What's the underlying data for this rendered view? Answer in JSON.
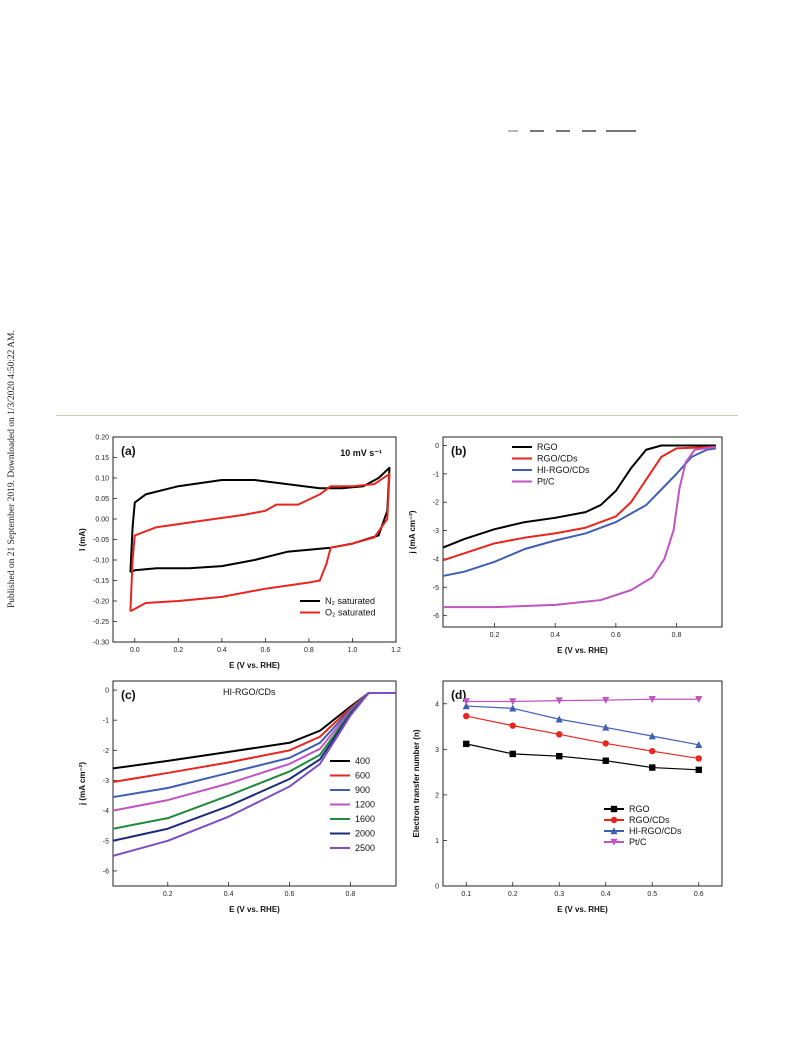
{
  "side_note": "Published on 21 September 2019. Downloaded on 1/3/2020 4:50:22 AM.",
  "chart_data": [
    {
      "type": "line",
      "panel_label": "(a)",
      "annotation": "10 mV s⁻¹",
      "xlabel": "E (V vs. RHE)",
      "ylabel": "I (mA)",
      "xlim": [
        -0.1,
        1.2
      ],
      "ylim": [
        -0.3,
        0.2
      ],
      "xticks": [
        "0.0",
        "0.2",
        "0.4",
        "0.6",
        "0.8",
        "1.0",
        "1.2"
      ],
      "yticks": [
        "-0.30",
        "-0.25",
        "-0.20",
        "-0.15",
        "-0.10",
        "-0.05",
        "0.00",
        "0.05",
        "0.10",
        "0.15",
        "0.20"
      ],
      "legend": "bottom-right",
      "series": [
        {
          "name": "N₂ saturated",
          "color": "#000000",
          "points": [
            [
              -0.02,
              -0.13
            ],
            [
              -0.01,
              -0.02
            ],
            [
              0.0,
              0.04
            ],
            [
              0.05,
              0.06
            ],
            [
              0.2,
              0.08
            ],
            [
              0.4,
              0.095
            ],
            [
              0.55,
              0.095
            ],
            [
              0.7,
              0.085
            ],
            [
              0.85,
              0.075
            ],
            [
              0.95,
              0.075
            ],
            [
              1.05,
              0.08
            ],
            [
              1.12,
              0.1
            ],
            [
              1.17,
              0.125
            ],
            [
              1.16,
              0.02
            ],
            [
              1.12,
              -0.04
            ],
            [
              1.0,
              -0.06
            ],
            [
              0.9,
              -0.07
            ],
            [
              0.7,
              -0.08
            ],
            [
              0.55,
              -0.1
            ],
            [
              0.4,
              -0.115
            ],
            [
              0.25,
              -0.12
            ],
            [
              0.1,
              -0.12
            ],
            [
              0.0,
              -0.125
            ],
            [
              -0.02,
              -0.13
            ]
          ]
        },
        {
          "name": "O₂ saturated",
          "color": "#e8261f",
          "points": [
            [
              -0.02,
              -0.225
            ],
            [
              -0.01,
              -0.1
            ],
            [
              0.0,
              -0.04
            ],
            [
              0.1,
              -0.02
            ],
            [
              0.3,
              -0.005
            ],
            [
              0.5,
              0.01
            ],
            [
              0.6,
              0.02
            ],
            [
              0.65,
              0.035
            ],
            [
              0.75,
              0.035
            ],
            [
              0.85,
              0.06
            ],
            [
              0.9,
              0.08
            ],
            [
              1.0,
              0.08
            ],
            [
              1.1,
              0.085
            ],
            [
              1.17,
              0.11
            ],
            [
              1.16,
              0.0
            ],
            [
              1.1,
              -0.045
            ],
            [
              1.0,
              -0.06
            ],
            [
              0.9,
              -0.07
            ],
            [
              0.88,
              -0.11
            ],
            [
              0.85,
              -0.15
            ],
            [
              0.8,
              -0.155
            ],
            [
              0.6,
              -0.17
            ],
            [
              0.4,
              -0.19
            ],
            [
              0.2,
              -0.2
            ],
            [
              0.05,
              -0.205
            ],
            [
              -0.02,
              -0.225
            ]
          ]
        }
      ]
    },
    {
      "type": "line",
      "panel_label": "(b)",
      "xlabel": "E (V vs. RHE)",
      "ylabel": "j (mA cm⁻²)",
      "xlim": [
        0.03,
        0.95
      ],
      "ylim": [
        -6.4,
        0.3
      ],
      "xticks": [
        "0.2",
        "0.4",
        "0.6",
        "0.8"
      ],
      "yticks": [
        "0",
        "-1",
        "-2",
        "-3",
        "-4",
        "-5",
        "-6"
      ],
      "legend": "top-left",
      "series": [
        {
          "name": "RGO",
          "color": "#000000",
          "points": [
            [
              0.03,
              -3.6
            ],
            [
              0.1,
              -3.3
            ],
            [
              0.2,
              -2.95
            ],
            [
              0.3,
              -2.7
            ],
            [
              0.4,
              -2.55
            ],
            [
              0.5,
              -2.35
            ],
            [
              0.55,
              -2.1
            ],
            [
              0.6,
              -1.6
            ],
            [
              0.65,
              -0.8
            ],
            [
              0.7,
              -0.15
            ],
            [
              0.75,
              0.0
            ],
            [
              0.85,
              0.0
            ],
            [
              0.93,
              0.0
            ]
          ]
        },
        {
          "name": "RGO/CDs",
          "color": "#e8261f",
          "points": [
            [
              0.03,
              -4.05
            ],
            [
              0.1,
              -3.8
            ],
            [
              0.2,
              -3.45
            ],
            [
              0.3,
              -3.25
            ],
            [
              0.4,
              -3.1
            ],
            [
              0.5,
              -2.9
            ],
            [
              0.6,
              -2.5
            ],
            [
              0.65,
              -2.0
            ],
            [
              0.7,
              -1.2
            ],
            [
              0.75,
              -0.4
            ],
            [
              0.8,
              -0.1
            ],
            [
              0.93,
              -0.05
            ]
          ]
        },
        {
          "name": "HI-RGO/CDs",
          "color": "#3f5fb5",
          "points": [
            [
              0.03,
              -4.6
            ],
            [
              0.1,
              -4.45
            ],
            [
              0.2,
              -4.1
            ],
            [
              0.3,
              -3.65
            ],
            [
              0.4,
              -3.35
            ],
            [
              0.5,
              -3.1
            ],
            [
              0.6,
              -2.7
            ],
            [
              0.7,
              -2.1
            ],
            [
              0.8,
              -1.0
            ],
            [
              0.85,
              -0.4
            ],
            [
              0.9,
              -0.15
            ],
            [
              0.93,
              -0.1
            ]
          ]
        },
        {
          "name": "Pt/C",
          "color": "#c054c0",
          "points": [
            [
              0.03,
              -5.7
            ],
            [
              0.2,
              -5.7
            ],
            [
              0.4,
              -5.62
            ],
            [
              0.55,
              -5.45
            ],
            [
              0.65,
              -5.1
            ],
            [
              0.72,
              -4.65
            ],
            [
              0.76,
              -4.0
            ],
            [
              0.79,
              -3.0
            ],
            [
              0.81,
              -1.5
            ],
            [
              0.83,
              -0.6
            ],
            [
              0.86,
              -0.15
            ],
            [
              0.93,
              -0.05
            ]
          ]
        }
      ]
    },
    {
      "type": "line",
      "panel_label": "(c)",
      "annotation": "HI-RGO/CDs",
      "xlabel": "E (V vs. RHE)",
      "ylabel": "j (mA cm⁻²)",
      "xlim": [
        0.02,
        0.95
      ],
      "ylim": [
        -6.5,
        0.3
      ],
      "xticks": [
        "0.2",
        "0.4",
        "0.6",
        "0.8"
      ],
      "yticks": [
        "0",
        "-1",
        "-2",
        "-3",
        "-4",
        "-5",
        "-6"
      ],
      "legend": "right",
      "series": [
        {
          "name": "400",
          "color": "#000000",
          "points": [
            [
              0.02,
              -2.6
            ],
            [
              0.2,
              -2.35
            ],
            [
              0.4,
              -2.05
            ],
            [
              0.6,
              -1.75
            ],
            [
              0.7,
              -1.35
            ],
            [
              0.8,
              -0.55
            ],
            [
              0.86,
              -0.1
            ],
            [
              0.95,
              -0.1
            ]
          ]
        },
        {
          "name": "600",
          "color": "#e8261f",
          "points": [
            [
              0.02,
              -3.05
            ],
            [
              0.2,
              -2.75
            ],
            [
              0.4,
              -2.4
            ],
            [
              0.6,
              -2.0
            ],
            [
              0.7,
              -1.55
            ],
            [
              0.8,
              -0.6
            ],
            [
              0.86,
              -0.1
            ],
            [
              0.95,
              -0.1
            ]
          ]
        },
        {
          "name": "900",
          "color": "#3f5fb5",
          "points": [
            [
              0.02,
              -3.55
            ],
            [
              0.2,
              -3.25
            ],
            [
              0.4,
              -2.75
            ],
            [
              0.6,
              -2.25
            ],
            [
              0.7,
              -1.75
            ],
            [
              0.8,
              -0.65
            ],
            [
              0.86,
              -0.1
            ],
            [
              0.95,
              -0.1
            ]
          ]
        },
        {
          "name": "1200",
          "color": "#c054c0",
          "points": [
            [
              0.02,
              -4.0
            ],
            [
              0.2,
              -3.65
            ],
            [
              0.4,
              -3.1
            ],
            [
              0.6,
              -2.45
            ],
            [
              0.7,
              -1.95
            ],
            [
              0.8,
              -0.7
            ],
            [
              0.86,
              -0.1
            ],
            [
              0.95,
              -0.1
            ]
          ]
        },
        {
          "name": "1600",
          "color": "#1f8a3a",
          "points": [
            [
              0.02,
              -4.6
            ],
            [
              0.2,
              -4.25
            ],
            [
              0.4,
              -3.5
            ],
            [
              0.6,
              -2.7
            ],
            [
              0.7,
              -2.15
            ],
            [
              0.8,
              -0.75
            ],
            [
              0.86,
              -0.1
            ],
            [
              0.95,
              -0.1
            ]
          ]
        },
        {
          "name": "2000",
          "color": "#1c2b7a",
          "points": [
            [
              0.02,
              -5.0
            ],
            [
              0.2,
              -4.6
            ],
            [
              0.4,
              -3.85
            ],
            [
              0.6,
              -2.95
            ],
            [
              0.7,
              -2.3
            ],
            [
              0.8,
              -0.8
            ],
            [
              0.86,
              -0.1
            ],
            [
              0.95,
              -0.1
            ]
          ]
        },
        {
          "name": "2500",
          "color": "#7b4fc4",
          "points": [
            [
              0.02,
              -5.5
            ],
            [
              0.2,
              -5.0
            ],
            [
              0.4,
              -4.2
            ],
            [
              0.6,
              -3.2
            ],
            [
              0.7,
              -2.45
            ],
            [
              0.8,
              -0.85
            ],
            [
              0.86,
              -0.1
            ],
            [
              0.95,
              -0.1
            ]
          ]
        }
      ]
    },
    {
      "type": "line",
      "panel_label": "(d)",
      "xlabel": "E (V vs. RHE)",
      "ylabel": "Electron transfer number (n)",
      "xlim": [
        0.05,
        0.65
      ],
      "ylim": [
        0,
        4.5
      ],
      "xticks": [
        "0.1",
        "0.2",
        "0.3",
        "0.4",
        "0.5",
        "0.6"
      ],
      "yticks": [
        "0",
        "1",
        "2",
        "3",
        "4"
      ],
      "legend": "bottom-right",
      "x": [
        0.1,
        0.2,
        0.3,
        0.4,
        0.5,
        0.6
      ],
      "series": [
        {
          "name": "RGO",
          "color": "#000000",
          "marker": "square",
          "values": [
            3.12,
            2.9,
            2.85,
            2.75,
            2.6,
            2.55
          ]
        },
        {
          "name": "RGO/CDs",
          "color": "#e8261f",
          "marker": "circle",
          "values": [
            3.73,
            3.52,
            3.33,
            3.13,
            2.96,
            2.8
          ]
        },
        {
          "name": "HI-RGO/CDs",
          "color": "#3f5fb5",
          "marker": "triangle-up",
          "values": [
            3.95,
            3.9,
            3.66,
            3.48,
            3.29,
            3.1
          ]
        },
        {
          "name": "Pt/C",
          "color": "#c054c0",
          "marker": "triangle-down",
          "values": [
            4.05,
            4.05,
            4.07,
            4.08,
            4.1,
            4.1
          ]
        }
      ]
    }
  ]
}
